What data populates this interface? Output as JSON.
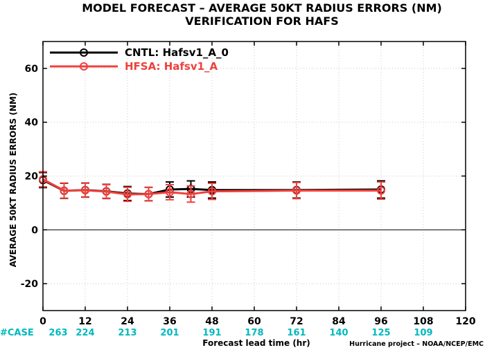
{
  "title_line1": "MODEL FORECAST – AVERAGE 50KT RADIUS ERRORS (NM)",
  "title_line2": "VERIFICATION FOR HAFS",
  "credit": "Hurricane project – NOAA/NCEP/EMC",
  "case_label": "#CASE",
  "colors": {
    "cntl": "#000000",
    "hfsa": "#f0403c",
    "cases": "#00b8c0",
    "zero_line": "#000000"
  },
  "chart_data": {
    "type": "line",
    "title": "MODEL FORECAST – AVERAGE 50KT RADIUS ERRORS (NM)",
    "subtitle": "VERIFICATION FOR HAFS",
    "xlabel": "Forecast lead time (hr)",
    "ylabel": "AVERAGE 50KT RADIUS ERRORS (NM)",
    "xlim": [
      0,
      120
    ],
    "ylim": [
      -30,
      70
    ],
    "xticks": [
      0,
      12,
      24,
      36,
      48,
      60,
      72,
      84,
      96,
      108,
      120
    ],
    "yticks": [
      -20,
      0,
      20,
      40,
      60
    ],
    "grid": true,
    "legend_position": "top-left",
    "series": [
      {
        "name": "CNTL: Hafsv1_A_0",
        "x": [
          0,
          6,
          12,
          18,
          24,
          30,
          36,
          42,
          48,
          72,
          96
        ],
        "y": [
          18.5,
          14.5,
          14.8,
          14.3,
          13.5,
          13.3,
          15.0,
          15.2,
          14.8,
          14.8,
          15.0
        ],
        "err": [
          2.8,
          2.8,
          2.6,
          2.6,
          2.6,
          2.5,
          2.8,
          3.0,
          3.0,
          3.0,
          3.2
        ]
      },
      {
        "name": "HFSA: Hafsv1_A",
        "x": [
          0,
          6,
          12,
          18,
          24,
          30,
          36,
          42,
          48,
          72,
          96
        ],
        "y": [
          18.8,
          14.6,
          14.7,
          14.2,
          13.2,
          13.3,
          14.0,
          13.3,
          14.3,
          14.6,
          14.6
        ],
        "err": [
          2.8,
          2.8,
          2.6,
          2.6,
          2.6,
          2.5,
          2.8,
          3.0,
          3.0,
          3.0,
          3.2
        ]
      }
    ],
    "cases": {
      "x": [
        0,
        12,
        24,
        36,
        48,
        60,
        72,
        84,
        96,
        108
      ],
      "counts": [
        263,
        224,
        213,
        201,
        191,
        178,
        161,
        140,
        125,
        109
      ]
    }
  }
}
